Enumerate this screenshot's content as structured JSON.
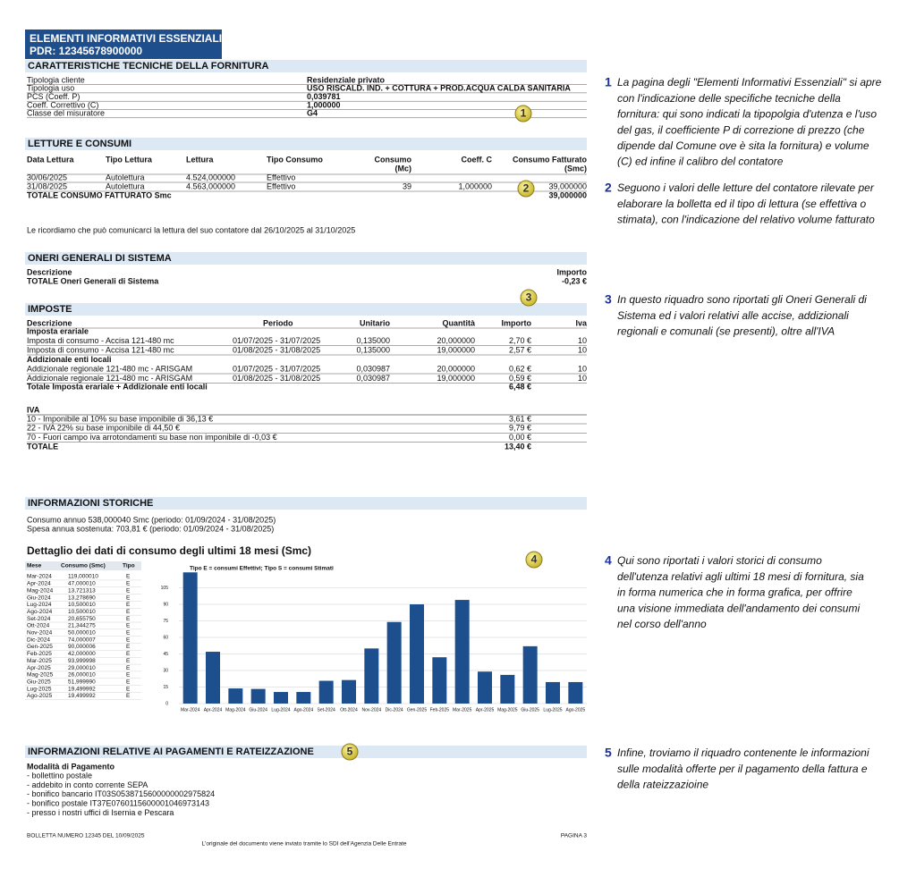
{
  "header": {
    "title": "ELEMENTI INFORMATIVI ESSENZIALI",
    "pdr": "PDR: 12345678900000"
  },
  "technical": {
    "title": "CARATTERISTICHE TECNICHE DELLA FORNITURA",
    "rows": [
      [
        "Tipologia cliente",
        "Residenziale privato"
      ],
      [
        "Tipologia uso",
        "USO RISCALD. IND. + COTTURA + PROD.ACQUA CALDA SANITARIA"
      ],
      [
        "PCS (Coeff. P)",
        "0,039781"
      ],
      [
        "Coeff. Correttivo (C)",
        "1,000000"
      ],
      [
        "Classe del misuratore",
        "G4"
      ]
    ]
  },
  "readings": {
    "title": "LETTURE E CONSUMI",
    "columns": [
      [
        "Data Lettura"
      ],
      [
        "Tipo Lettura"
      ],
      [
        "Lettura"
      ],
      [
        "Tipo Consumo"
      ],
      [
        "Consumo",
        "(Mc)"
      ],
      [
        "Coeff. C"
      ],
      [
        "Consumo Fatturato",
        "(Smc)"
      ]
    ],
    "rows": [
      [
        "30/06/2025",
        "Autolettura",
        "4.524,000000",
        "Effettivo"
      ],
      [
        "31/08/2025",
        "Autolettura",
        "4.563,000000",
        "Effettivo",
        "39",
        "1,000000",
        "39,000000"
      ]
    ],
    "total": {
      "label": "TOTALE CONSUMO FATTURATO Smc",
      "value": "39,000000"
    }
  },
  "reading_note": "Le ricordiamo che può comunicarci la lettura del suo contatore dal 26/10/2025 al 31/10/2025",
  "system_charges": {
    "title": "ONERI GENERALI DI SISTEMA",
    "columns": [
      "Descrizione",
      "Importo"
    ],
    "total": {
      "label": "TOTALE Oneri Generali di Sistema",
      "value": "-0,23 €"
    }
  },
  "taxes": {
    "title": "IMPOSTE",
    "columns": [
      "Descrizione",
      "Periodo",
      "Unitario",
      "Quantità",
      "Importo",
      "Iva"
    ],
    "groups": [
      {
        "name": "Imposta erariale",
        "rows": [
          [
            "Imposta di consumo - Accisa 121-480 mc",
            "01/07/2025 - 31/07/2025",
            "0,135000",
            "20,000000",
            "2,70 €",
            "10"
          ],
          [
            "Imposta di consumo - Accisa 121-480 mc",
            "01/08/2025 - 31/08/2025",
            "0,135000",
            "19,000000",
            "2,57 €",
            "10"
          ]
        ]
      },
      {
        "name": "Addizionale enti locali",
        "rows": [
          [
            "Addizionale regionale 121-480 mc - ARISGAM",
            "01/07/2025 - 31/07/2025",
            "0,030987",
            "20,000000",
            "0,62 €",
            "10"
          ],
          [
            "Addizionale regionale 121-480 mc - ARISGAM",
            "01/08/2025 - 31/08/2025",
            "0,030987",
            "19,000000",
            "0,59 €",
            "10"
          ]
        ]
      }
    ],
    "total": {
      "label": "Totale Imposta erariale + Addizionale enti locali",
      "value": "6,48 €"
    }
  },
  "vat": {
    "title": "IVA",
    "rows": [
      [
        "10 - Imponibile al 10% su base imponibile di 36,13 €",
        "3,61 €"
      ],
      [
        "22 - IVA 22% su base imponibile di 44,50 €",
        "9,79 €"
      ],
      [
        "70 - Fuori campo iva arrotondamenti su base non imponibile di -0,03 €",
        "0,00 €"
      ]
    ],
    "total": {
      "label": "TOTALE",
      "value": "13,40 €"
    }
  },
  "history": {
    "title": "INFORMAZIONI STORICHE",
    "lines": [
      "Consumo annuo 538,000040 Smc (periodo: 01/09/2024 - 31/08/2025)",
      "Spesa annua sostenuta: 703,81 € (periodo: 01/09/2024 - 31/08/2025)"
    ],
    "detail_title": "Dettaglio dei dati di consumo degli ultimi 18 mesi (Smc)",
    "table": {
      "columns": [
        "Mese",
        "Consumo (Smc)",
        "Tipo"
      ],
      "rows": [
        [
          "Mar-2024",
          "119,000010",
          "E"
        ],
        [
          "Apr-2024",
          "47,000010",
          "E"
        ],
        [
          "Mag-2024",
          "13,721313",
          "E"
        ],
        [
          "Giu-2024",
          "13,278690",
          "E"
        ],
        [
          "Lug-2024",
          "10,500010",
          "E"
        ],
        [
          "Ago-2024",
          "10,500010",
          "E"
        ],
        [
          "Set-2024",
          "20,655750",
          "E"
        ],
        [
          "Ott-2024",
          "21,344275",
          "E"
        ],
        [
          "Nov-2024",
          "50,000010",
          "E"
        ],
        [
          "Dic-2024",
          "74,000007",
          "E"
        ],
        [
          "Gen-2025",
          "90,000006",
          "E"
        ],
        [
          "Feb-2025",
          "42,000000",
          "E"
        ],
        [
          "Mar-2025",
          "93,999998",
          "E"
        ],
        [
          "Apr-2025",
          "29,000010",
          "E"
        ],
        [
          "Mag-2025",
          "26,000010",
          "E"
        ],
        [
          "Giu-2025",
          "51,999990",
          "E"
        ],
        [
          "Lug-2025",
          "19,499992",
          "E"
        ],
        [
          "Ago-2025",
          "19,499992",
          "E"
        ]
      ]
    }
  },
  "chart_data": {
    "type": "bar",
    "subtitle": "Tipo E = consumi Effettivi; Tipo S = consumi Stimati",
    "categories": [
      "Mar-2024",
      "Apr-2024",
      "Mag-2024",
      "Giu-2024",
      "Lug-2024",
      "Ago-2024",
      "Set-2024",
      "Ott-2024",
      "Nov-2024",
      "Dic-2024",
      "Gen-2025",
      "Feb-2025",
      "Mar-2025",
      "Apr-2025",
      "Mag-2025",
      "Giu-2025",
      "Lug-2025",
      "Ago-2025"
    ],
    "values": [
      119.00001,
      47.00001,
      13.721313,
      13.27869,
      10.50001,
      10.50001,
      20.65575,
      21.344275,
      50.00001,
      74.000007,
      90.000006,
      42,
      93.999998,
      29.00001,
      26.00001,
      51.99999,
      19.499992,
      19.499992
    ],
    "color": "#1d4f8e",
    "ylim": [
      0,
      120
    ],
    "yticks": [
      0,
      15,
      30,
      45,
      60,
      75,
      90,
      105
    ],
    "grid": true
  },
  "payments": {
    "title": "INFORMAZIONI RELATIVE AI PAGAMENTI E RATEIZZAZIONE",
    "subtitle": "Modalità di Pagamento",
    "items": [
      "- bollettino postale",
      "- addebito in conto corrente SEPA",
      "- bonifico bancario IT03S0538715600000002975824",
      "- bonifico postale IT37E0760115600001046973143",
      "- presso i nostri uffici di Isernia e Pescara"
    ]
  },
  "footer": {
    "left": "BOLLETTA NUMERO 12345 DEL 10/09/2025",
    "right": "PAGINA 3",
    "center": "L'originale del documento viene inviato tramite lo SDI dell'Agenzia Delle Entrate"
  },
  "markers": [
    "1",
    "2",
    "3",
    "4",
    "5"
  ],
  "notes": [
    {
      "number": "1",
      "lines": [
        "La pagina degli \"Elementi Informativi Essenziali\" si apre",
        "con l'indicazione delle specifiche tecniche della",
        "fornitura: qui sono indicati la tipopolgia d'utenza e l'uso",
        "del gas, il coefficiente P di correzione di prezzo (che",
        "dipende dal Comune ove è sita la fornitura) e volume",
        "(C) ed infine il calibro del contatore"
      ]
    },
    {
      "number": "2",
      "lines": [
        "Seguono i valori delle letture del contatore rilevate per",
        "elaborare la bolletta ed il tipo di lettura (se effettiva o",
        "stimata), con l'indicazione del relativo volume fatturato"
      ]
    },
    {
      "number": "3",
      "lines": [
        "In questo riquadro sono riportati gli Oneri Generali di",
        "Sistema ed i valori relativi alle accise, addizionali",
        "regionali e comunali (se presenti), oltre all'IVA"
      ]
    },
    {
      "number": "4",
      "lines": [
        "Qui sono riportati i valori storici di consumo",
        "dell'utenza relativi agli ultimi 18 mesi di fornitura, sia",
        "in forma numerica che in forma grafica, per offrire",
        "una visione immediata dell'andamento dei consumi",
        "nel corso dell'anno"
      ]
    },
    {
      "number": "5",
      "lines": [
        "Infine, troviamo il riquadro contenente le informazioni",
        "sulle modalità offerte per il pagamento della fattura e",
        "della rateizzazioine"
      ]
    }
  ]
}
